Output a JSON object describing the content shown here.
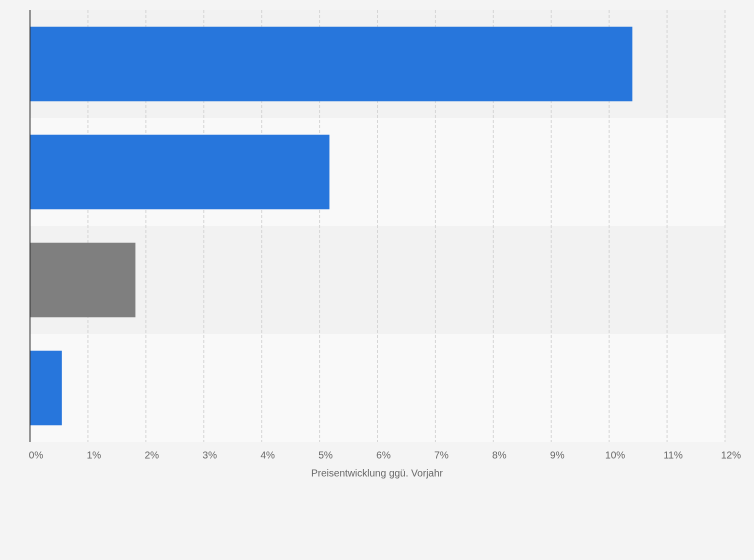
{
  "chart_data": {
    "type": "hbar",
    "xlabel": "Preisentwicklung ggü. Vorjahr",
    "categories": [
      null,
      null,
      null,
      null
    ],
    "values": [
      10.4,
      5.17,
      1.82,
      0.55
    ],
    "colors": [
      "#2776dc",
      "#2776dc",
      "#7f7f7f",
      "#2776dc"
    ],
    "xlim": [
      0,
      12
    ],
    "xticks": [
      {
        "value": 0,
        "label": "0%"
      },
      {
        "value": 1,
        "label": "1%"
      },
      {
        "value": 2,
        "label": "2%"
      },
      {
        "value": 3,
        "label": "3%"
      },
      {
        "value": 4,
        "label": "4%"
      },
      {
        "value": 5,
        "label": "5%"
      },
      {
        "value": 6,
        "label": "6%"
      },
      {
        "value": 7,
        "label": "7%"
      },
      {
        "value": 8,
        "label": "8%"
      },
      {
        "value": 9,
        "label": "9%"
      },
      {
        "value": 10,
        "label": "10%"
      },
      {
        "value": 11,
        "label": "11%"
      },
      {
        "value": 12,
        "label": "12%"
      }
    ],
    "grid": true
  }
}
